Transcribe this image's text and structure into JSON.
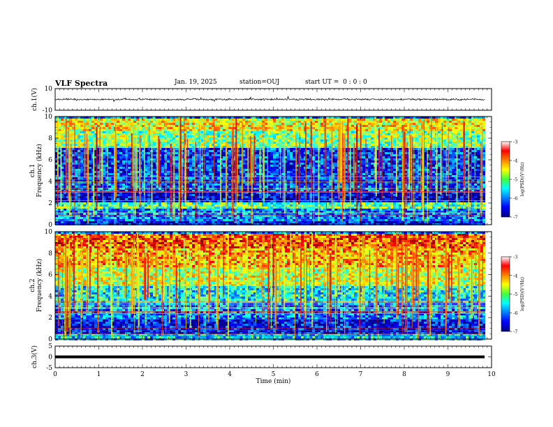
{
  "header": {
    "title": "VLF Spectra",
    "date": "Jan. 19, 2025",
    "station": "station=OUJ",
    "start_ut": "start UT =  0 : 0 : 0"
  },
  "chart_data": [
    {
      "type": "line",
      "panel": "ch1-waveform",
      "ylabel": "ch.1(V)",
      "ylim": [
        -10,
        10
      ],
      "yticks": [
        "10",
        "-10"
      ],
      "baseline": 0,
      "xlim": [
        0,
        10
      ],
      "data_extent": 9.85,
      "color": "#000000"
    },
    {
      "type": "heatmap",
      "panel": "ch1-spectrogram",
      "ylabel": "ch.1\nFrequency (kHz)",
      "ylim": [
        0,
        10
      ],
      "yticks": [
        "0",
        "2",
        "4",
        "6",
        "8",
        "10"
      ],
      "xlim": [
        0,
        10
      ],
      "data_extent": 9.85,
      "colorbar": {
        "label": "log(PSD)(V²/Hz)",
        "range": [
          -7,
          -3
        ],
        "ticks": [
          "-3",
          "-4",
          "-5",
          "-6",
          "-7"
        ]
      },
      "bands": [
        {
          "f": [
            0,
            0.5
          ],
          "level": -6.5
        },
        {
          "f": [
            0.5,
            1.6
          ],
          "level": -6.0
        },
        {
          "f": [
            1.6,
            2.2
          ],
          "level": -5.2
        },
        {
          "f": [
            2.2,
            3.2
          ],
          "level": -6.6
        },
        {
          "f": [
            3.2,
            4.0
          ],
          "level": -6.2
        },
        {
          "f": [
            4.0,
            7.2
          ],
          "level": -6.3
        },
        {
          "f": [
            7.2,
            8.8
          ],
          "level": -5.0
        },
        {
          "f": [
            8.8,
            10
          ],
          "level": -4.5
        }
      ]
    },
    {
      "type": "heatmap",
      "panel": "ch2-spectrogram",
      "ylabel": "ch.2\nFrequency (kHz)",
      "ylim": [
        0,
        10
      ],
      "yticks": [
        "0",
        "2",
        "4",
        "6",
        "8",
        "10"
      ],
      "xlim": [
        0,
        10
      ],
      "data_extent": 9.85,
      "colorbar": {
        "label": "log(PSD)(V²/Hz)",
        "range": [
          -7,
          -3
        ],
        "ticks": [
          "-3",
          "-4",
          "-5",
          "-6",
          "-7"
        ]
      },
      "bands": [
        {
          "f": [
            0,
            0.6
          ],
          "level": -5.6
        },
        {
          "f": [
            0.6,
            2.0
          ],
          "level": -6.5
        },
        {
          "f": [
            2.0,
            3.4
          ],
          "level": -6.0
        },
        {
          "f": [
            3.4,
            5.0
          ],
          "level": -5.5
        },
        {
          "f": [
            5.0,
            6.8
          ],
          "level": -4.7
        },
        {
          "f": [
            6.8,
            8.5
          ],
          "level": -4.2
        },
        {
          "f": [
            8.5,
            10
          ],
          "level": -3.8
        }
      ]
    },
    {
      "type": "line",
      "panel": "ch3-waveform",
      "ylabel": "ch.3(V)",
      "ylim": [
        -5,
        5
      ],
      "yticks": [
        "5",
        "0",
        "-5"
      ],
      "baseline": 0,
      "xlim": [
        0,
        10
      ],
      "data_extent": 9.85,
      "color": "#000000"
    }
  ],
  "xaxis": {
    "label": "Time (min)",
    "ticks": [
      "0",
      "1",
      "2",
      "3",
      "4",
      "5",
      "6",
      "7",
      "8",
      "9",
      "10"
    ]
  }
}
